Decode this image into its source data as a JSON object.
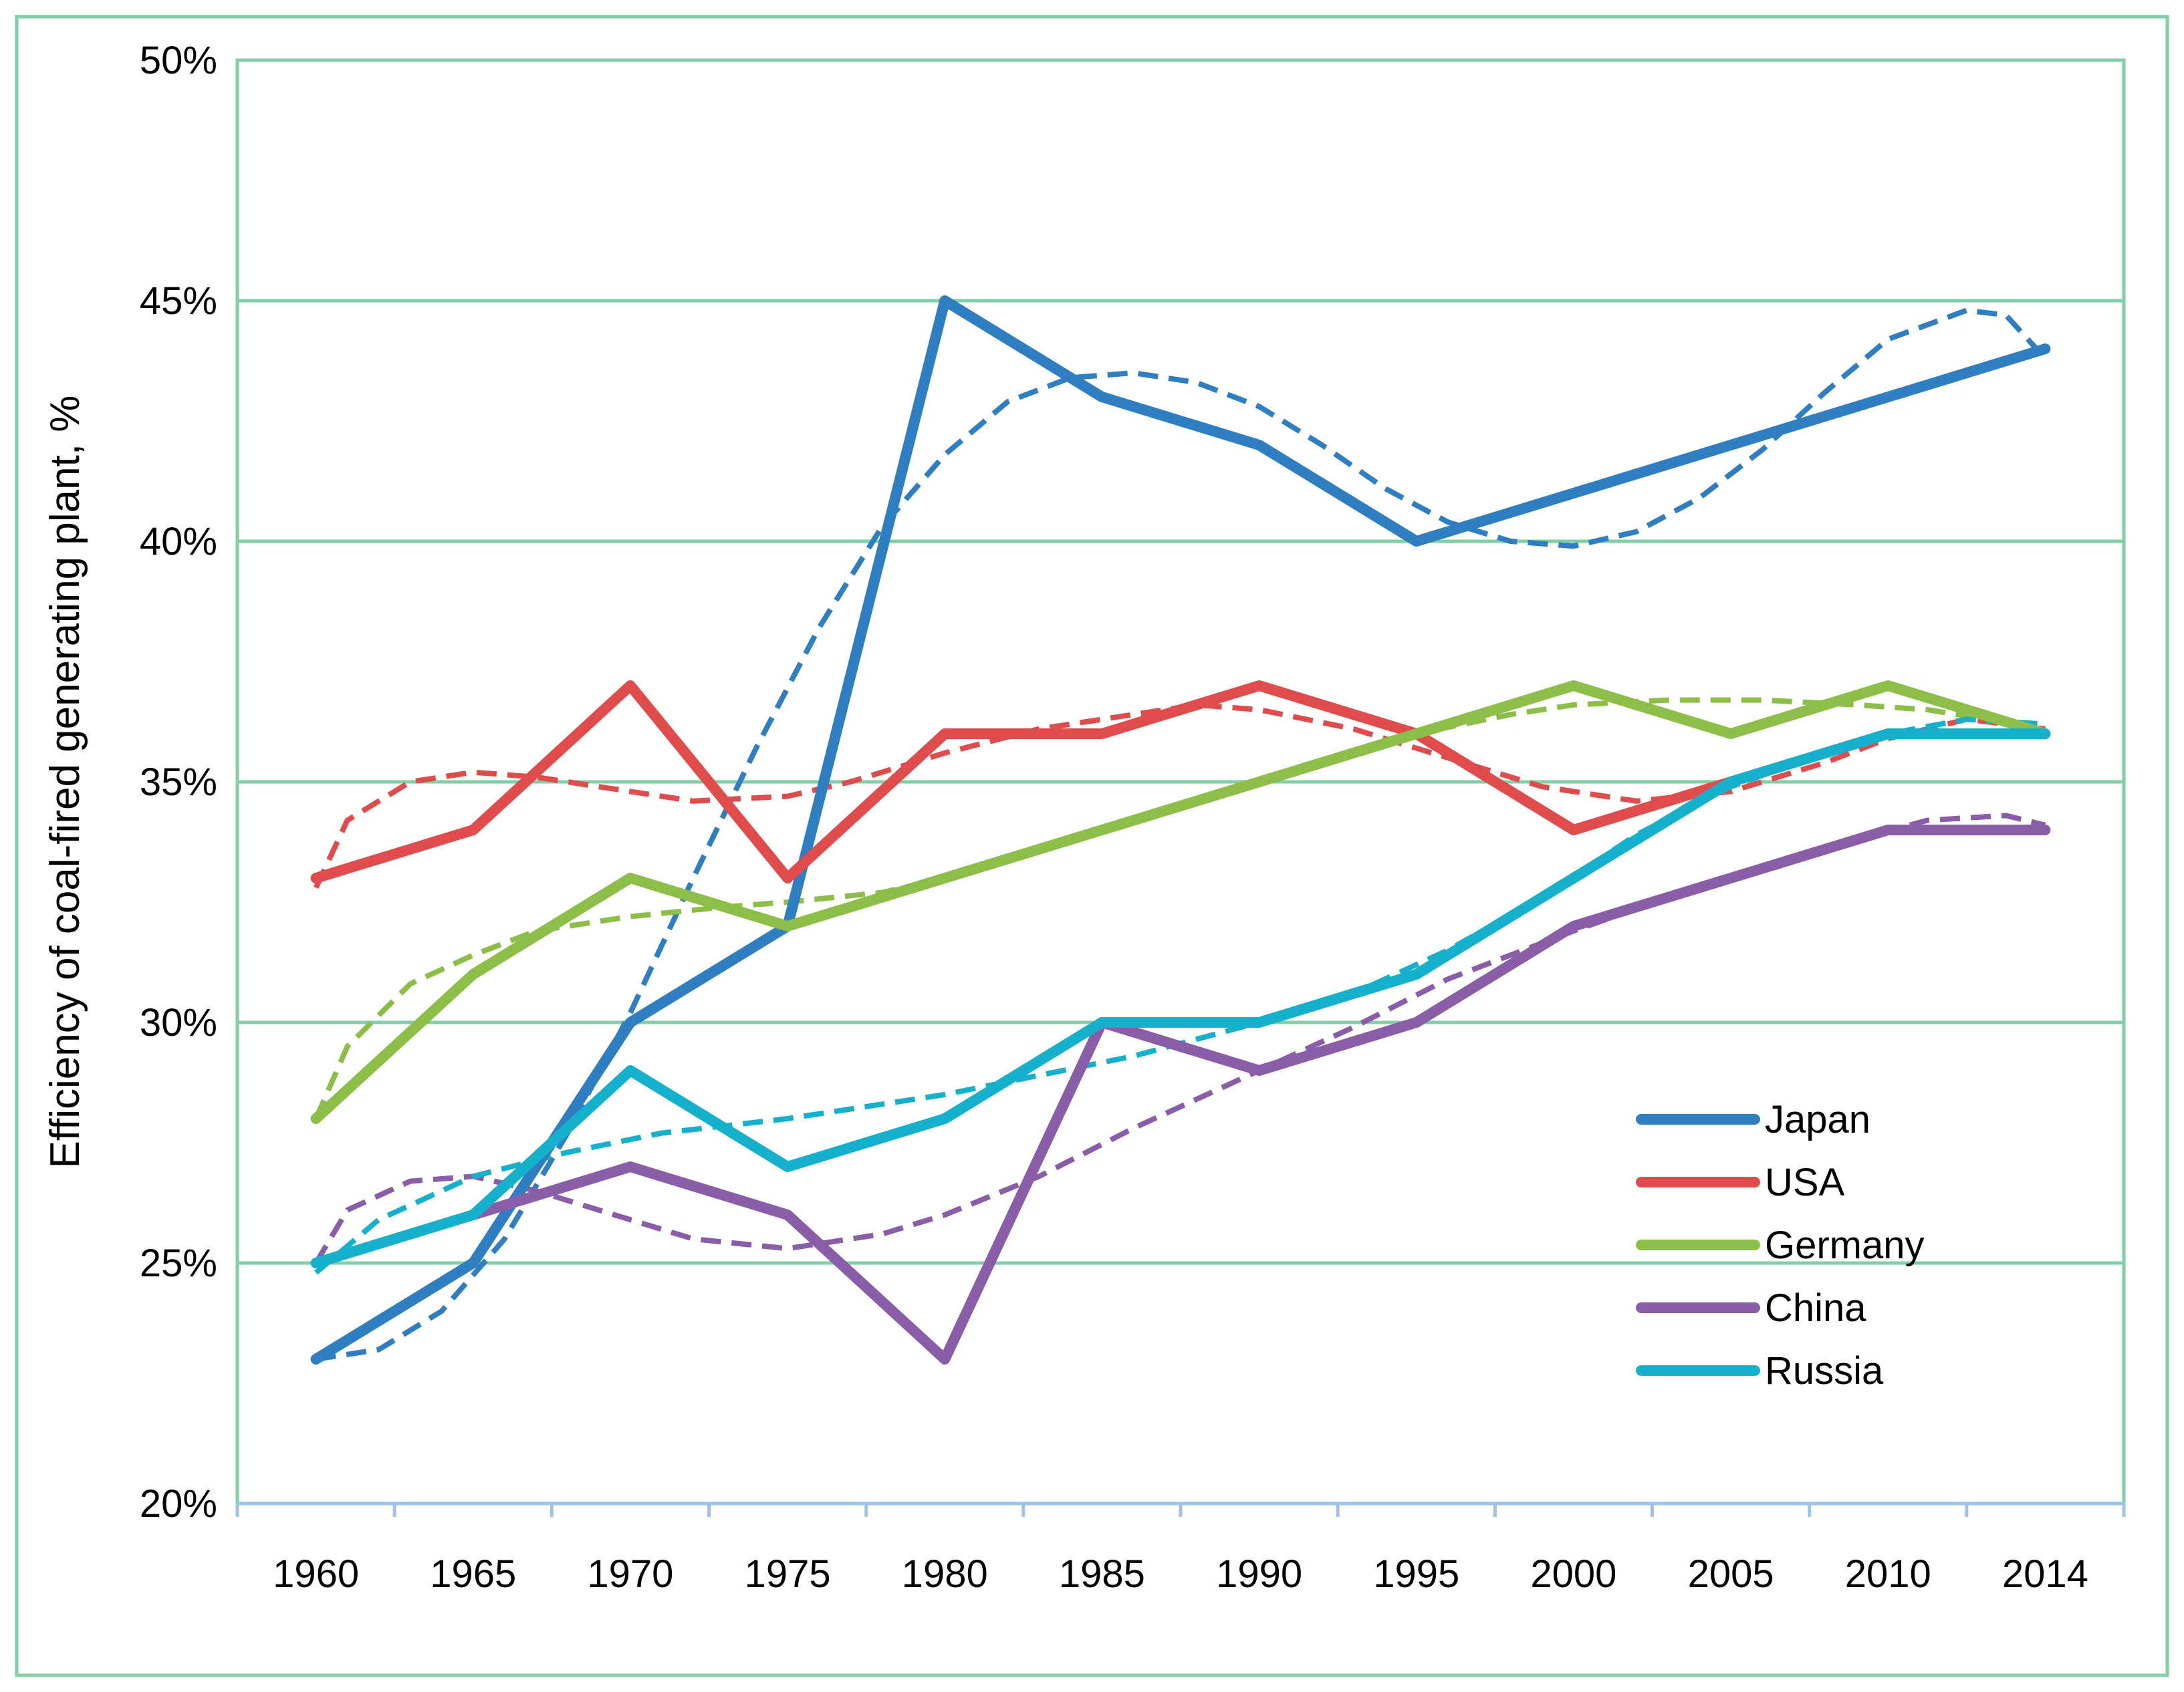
{
  "chart_data": {
    "type": "line",
    "title": "",
    "xlabel": "",
    "ylabel": "Efficiency of coal-fired generating plant, %",
    "categories": [
      "1960",
      "1965",
      "1970",
      "1975",
      "1980",
      "1985",
      "1990",
      "1995",
      "2000",
      "2005",
      "2010",
      "2014"
    ],
    "ylim": [
      20,
      50
    ],
    "yticks": [
      20,
      25,
      30,
      35,
      40,
      45,
      50
    ],
    "ytick_labels": [
      "20%",
      "25%",
      "30%",
      "35%",
      "40%",
      "45%",
      "50%"
    ],
    "grid": "horizontal",
    "legend_position": "lower-right",
    "series": [
      {
        "name": "Japan",
        "color": "#2E7EC1",
        "values": [
          23,
          25,
          30,
          32,
          45,
          43,
          42,
          40,
          41,
          42,
          43,
          44
        ]
      },
      {
        "name": "USA",
        "color": "#E04B4B",
        "values": [
          33,
          34,
          37,
          33,
          36,
          36,
          37,
          36,
          34,
          35,
          36,
          36
        ]
      },
      {
        "name": "Germany",
        "color": "#8DBE47",
        "values": [
          28,
          31,
          33,
          32,
          33,
          34,
          35,
          36,
          37,
          36,
          37,
          36
        ]
      },
      {
        "name": "China",
        "color": "#8A5DA8",
        "values": [
          null,
          26,
          27,
          26,
          23,
          30,
          29,
          30,
          32,
          33,
          34,
          34
        ]
      },
      {
        "name": "Russia",
        "color": "#15B0CC",
        "values": [
          25,
          26,
          29,
          27,
          28,
          30,
          30,
          31,
          33,
          35,
          36,
          36
        ]
      }
    ],
    "trendlines": [
      {
        "name": "Japan trend",
        "color": "#2E7EC1",
        "style": "dashed",
        "points": [
          [
            1960,
            23.0
          ],
          [
            1962,
            23.2
          ],
          [
            1964,
            24.0
          ],
          [
            1966,
            25.5
          ],
          [
            1968,
            27.7
          ],
          [
            1970,
            30.2
          ],
          [
            1972,
            33.0
          ],
          [
            1974,
            35.7
          ],
          [
            1976,
            38.2
          ],
          [
            1978,
            40.3
          ],
          [
            1980,
            41.8
          ],
          [
            1982,
            42.9
          ],
          [
            1984,
            43.4
          ],
          [
            1986,
            43.5
          ],
          [
            1988,
            43.3
          ],
          [
            1990,
            42.8
          ],
          [
            1992,
            42.0
          ],
          [
            1994,
            41.1
          ],
          [
            1996,
            40.4
          ],
          [
            1998,
            40.0
          ],
          [
            2000,
            39.9
          ],
          [
            2002,
            40.2
          ],
          [
            2004,
            40.9
          ],
          [
            2006,
            41.9
          ],
          [
            2008,
            43.1
          ],
          [
            2010,
            44.2
          ],
          [
            2012,
            44.8
          ],
          [
            2013,
            44.7
          ],
          [
            2014,
            43.8
          ]
        ]
      },
      {
        "name": "USA trend",
        "color": "#E04B4B",
        "style": "dashed",
        "points": [
          [
            1960,
            32.8
          ],
          [
            1961,
            34.2
          ],
          [
            1963,
            35.0
          ],
          [
            1965,
            35.2
          ],
          [
            1967,
            35.1
          ],
          [
            1970,
            34.8
          ],
          [
            1972,
            34.6
          ],
          [
            1975,
            34.7
          ],
          [
            1977,
            35.0
          ],
          [
            1980,
            35.6
          ],
          [
            1983,
            36.1
          ],
          [
            1986,
            36.4
          ],
          [
            1988,
            36.6
          ],
          [
            1990,
            36.5
          ],
          [
            1993,
            36.1
          ],
          [
            1996,
            35.5
          ],
          [
            1999,
            34.9
          ],
          [
            2002,
            34.6
          ],
          [
            2005,
            34.8
          ],
          [
            2008,
            35.4
          ],
          [
            2010,
            35.9
          ],
          [
            2012,
            36.3
          ],
          [
            2014,
            36.1
          ]
        ]
      },
      {
        "name": "Germany trend",
        "color": "#8DBE47",
        "style": "dashed",
        "points": [
          [
            1960,
            28.0
          ],
          [
            1961,
            29.5
          ],
          [
            1963,
            30.8
          ],
          [
            1965,
            31.4
          ],
          [
            1967,
            31.9
          ],
          [
            1970,
            32.2
          ],
          [
            1973,
            32.4
          ],
          [
            1975,
            32.5
          ],
          [
            1978,
            32.7
          ],
          [
            1980,
            33.0
          ],
          [
            1985,
            34.0
          ],
          [
            1990,
            35.0
          ],
          [
            1995,
            36.0
          ],
          [
            1998,
            36.4
          ],
          [
            2000,
            36.6
          ],
          [
            2003,
            36.7
          ],
          [
            2006,
            36.7
          ],
          [
            2009,
            36.6
          ],
          [
            2011,
            36.5
          ],
          [
            2014,
            36.1
          ]
        ]
      },
      {
        "name": "China trend",
        "color": "#8A5DA8",
        "style": "dashed",
        "points": [
          [
            1960,
            25.0
          ],
          [
            1961,
            26.1
          ],
          [
            1963,
            26.7
          ],
          [
            1965,
            26.8
          ],
          [
            1967,
            26.5
          ],
          [
            1970,
            25.9
          ],
          [
            1972,
            25.5
          ],
          [
            1975,
            25.3
          ],
          [
            1978,
            25.6
          ],
          [
            1980,
            26.0
          ],
          [
            1983,
            26.8
          ],
          [
            1986,
            27.8
          ],
          [
            1990,
            29.0
          ],
          [
            1993,
            29.9
          ],
          [
            1996,
            30.9
          ],
          [
            2000,
            31.9
          ],
          [
            2003,
            32.6
          ],
          [
            2006,
            33.2
          ],
          [
            2009,
            33.8
          ],
          [
            2011,
            34.2
          ],
          [
            2013,
            34.3
          ],
          [
            2014,
            34.1
          ]
        ]
      },
      {
        "name": "Russia trend",
        "color": "#15B0CC",
        "style": "dashed",
        "points": [
          [
            1960,
            24.8
          ],
          [
            1962,
            25.9
          ],
          [
            1965,
            26.8
          ],
          [
            1968,
            27.3
          ],
          [
            1971,
            27.7
          ],
          [
            1975,
            28.0
          ],
          [
            1980,
            28.5
          ],
          [
            1983,
            28.9
          ],
          [
            1986,
            29.3
          ],
          [
            1990,
            30.0
          ],
          [
            1993,
            30.6
          ],
          [
            1996,
            31.5
          ],
          [
            1999,
            32.6
          ],
          [
            2002,
            33.9
          ],
          [
            2005,
            34.9
          ],
          [
            2008,
            35.6
          ],
          [
            2010,
            36.0
          ],
          [
            2012,
            36.3
          ],
          [
            2014,
            36.2
          ]
        ]
      }
    ]
  }
}
